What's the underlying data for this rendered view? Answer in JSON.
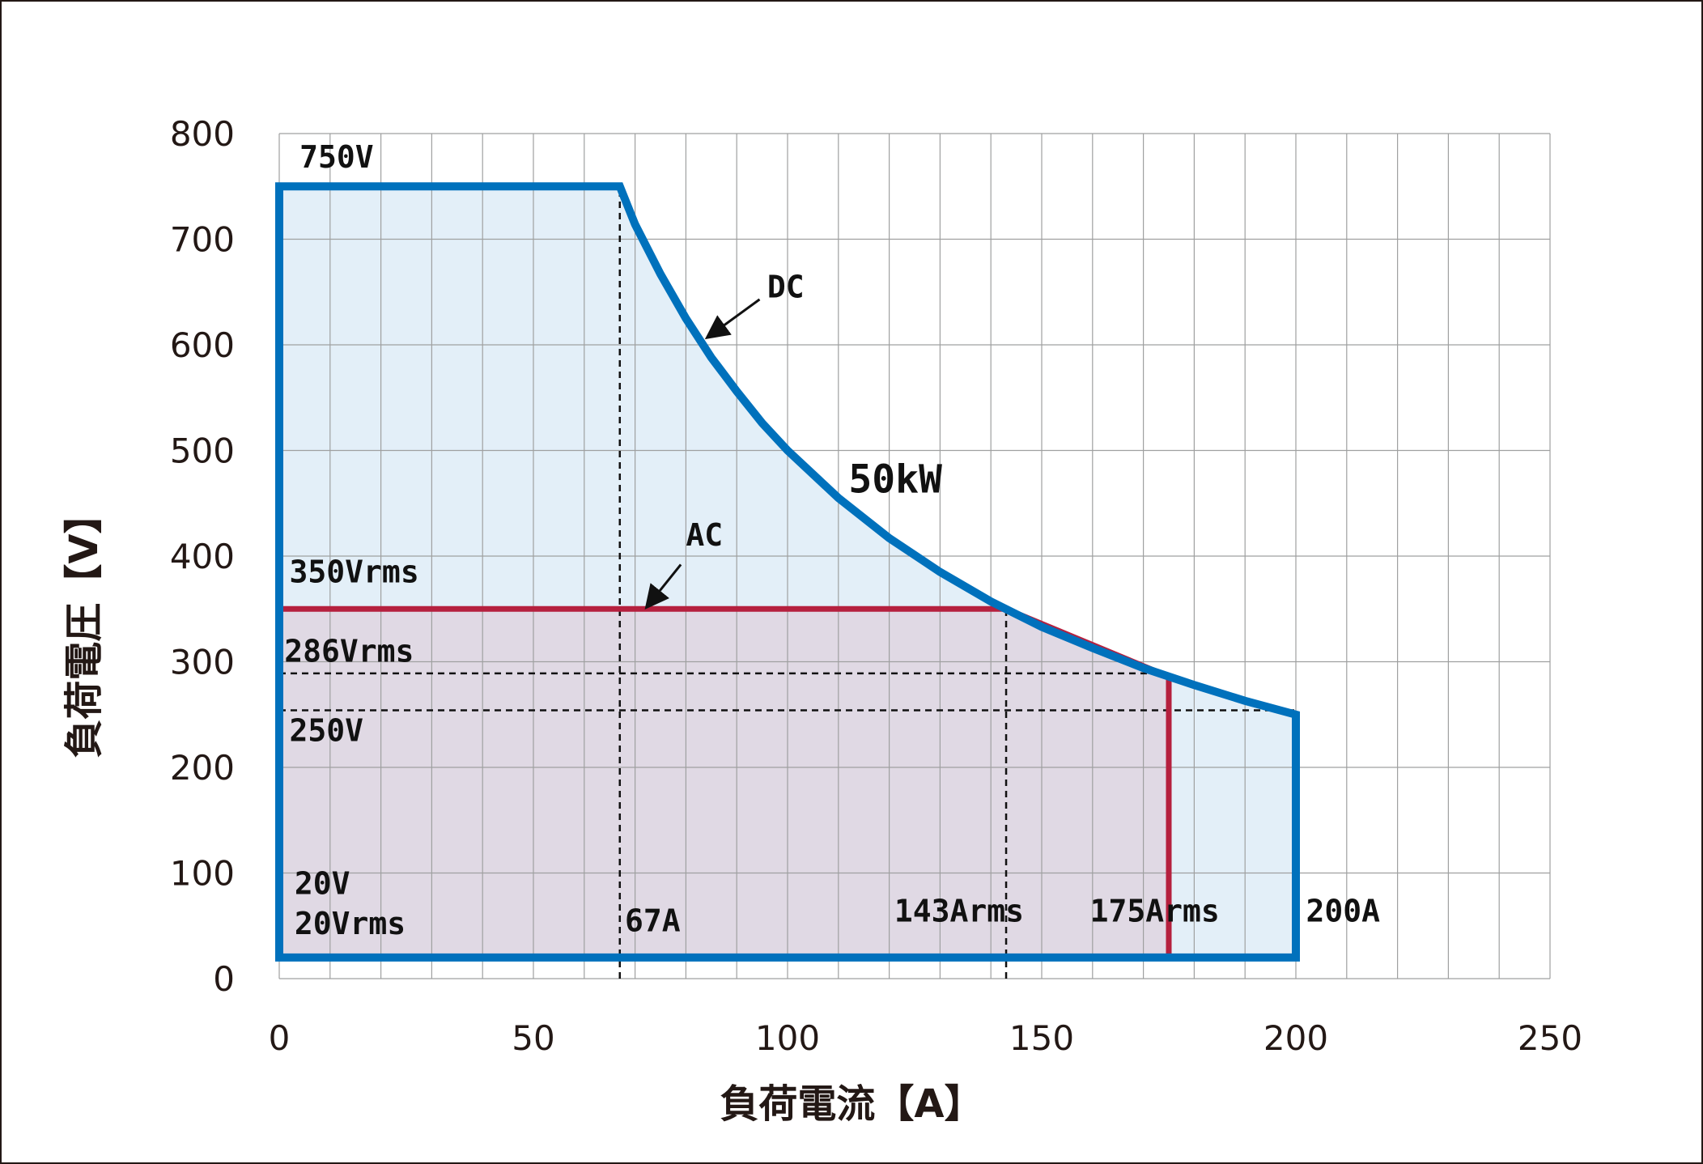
{
  "chart_data": {
    "type": "area",
    "title": "",
    "xlabel": "負荷電流【A】",
    "ylabel": "負荷電圧【V】",
    "xlim": [
      0,
      250
    ],
    "ylim": [
      0,
      800
    ],
    "x_ticks": [
      0,
      50,
      100,
      150,
      200,
      250
    ],
    "y_ticks": [
      0,
      100,
      200,
      300,
      400,
      500,
      600,
      700,
      800
    ],
    "x_tick_labels": [
      "0",
      "50",
      "100",
      "150",
      "200",
      "250"
    ],
    "y_tick_labels": [
      "0",
      "100",
      "200",
      "300",
      "400",
      "500",
      "600",
      "700",
      "800"
    ],
    "grid": true,
    "series": [
      {
        "name": "DC",
        "color": "#0071bc",
        "fill": "#e3eff8",
        "power_kw": 50,
        "points": [
          [
            0,
            750
          ],
          [
            67,
            750
          ],
          [
            70,
            714
          ],
          [
            75,
            667
          ],
          [
            80,
            625
          ],
          [
            85,
            588
          ],
          [
            90,
            556
          ],
          [
            95,
            526
          ],
          [
            100,
            500
          ],
          [
            110,
            455
          ],
          [
            120,
            417
          ],
          [
            130,
            385
          ],
          [
            140,
            357
          ],
          [
            150,
            333
          ],
          [
            160,
            313
          ],
          [
            170,
            294
          ],
          [
            180,
            278
          ],
          [
            190,
            263
          ],
          [
            200,
            250
          ],
          [
            200,
            20
          ],
          [
            0,
            20
          ]
        ]
      },
      {
        "name": "AC",
        "color": "#b5203e",
        "fill": "#e0d9e4",
        "points": [
          [
            0,
            350
          ],
          [
            143,
            350
          ],
          [
            175,
            286
          ],
          [
            175,
            20
          ],
          [
            0,
            20
          ]
        ]
      }
    ],
    "reference_lines": [
      {
        "orientation": "vertical",
        "x": 67,
        "y_from": 0,
        "y_to": 750
      },
      {
        "orientation": "vertical",
        "x": 143,
        "y_from": 0,
        "y_to": 350
      },
      {
        "orientation": "horizontal",
        "y": 289,
        "x_from": 0,
        "x_to": 175
      },
      {
        "orientation": "horizontal",
        "y": 254,
        "x_from": 0,
        "x_to": 200
      }
    ],
    "annotations": [
      {
        "id": "v750",
        "text": "750V",
        "x": 4,
        "y": 768
      },
      {
        "id": "dc",
        "text": "DC",
        "x": 96,
        "y": 645
      },
      {
        "id": "kw50",
        "text": "50kW",
        "x": 112,
        "y": 460
      },
      {
        "id": "ac",
        "text": "AC",
        "x": 80,
        "y": 410
      },
      {
        "id": "v350",
        "text": "350Vrms",
        "x": 2,
        "y": 375
      },
      {
        "id": "v286",
        "text": "286Vrms",
        "x": 1,
        "y": 300
      },
      {
        "id": "v250",
        "text": "250V",
        "x": 2,
        "y": 225
      },
      {
        "id": "v20",
        "text": "20V",
        "x": 3,
        "y": 80
      },
      {
        "id": "v20rms",
        "text": "20Vrms",
        "x": 3,
        "y": 42
      },
      {
        "id": "a67",
        "text": "67A",
        "x": 68,
        "y": 45
      },
      {
        "id": "a143",
        "text": "143Arms",
        "x": 121,
        "y": 54
      },
      {
        "id": "a175",
        "text": "175Arms",
        "x": 159.5,
        "y": 54
      },
      {
        "id": "a200",
        "text": "200A",
        "x": 202,
        "y": 54
      }
    ],
    "arrows": [
      {
        "id": "dc-arrow",
        "from": [
          94.5,
          643
        ],
        "to": [
          84.5,
          608
        ]
      },
      {
        "id": "ac-arrow",
        "from": [
          79,
          392
        ],
        "to": [
          72.5,
          353
        ]
      }
    ]
  }
}
